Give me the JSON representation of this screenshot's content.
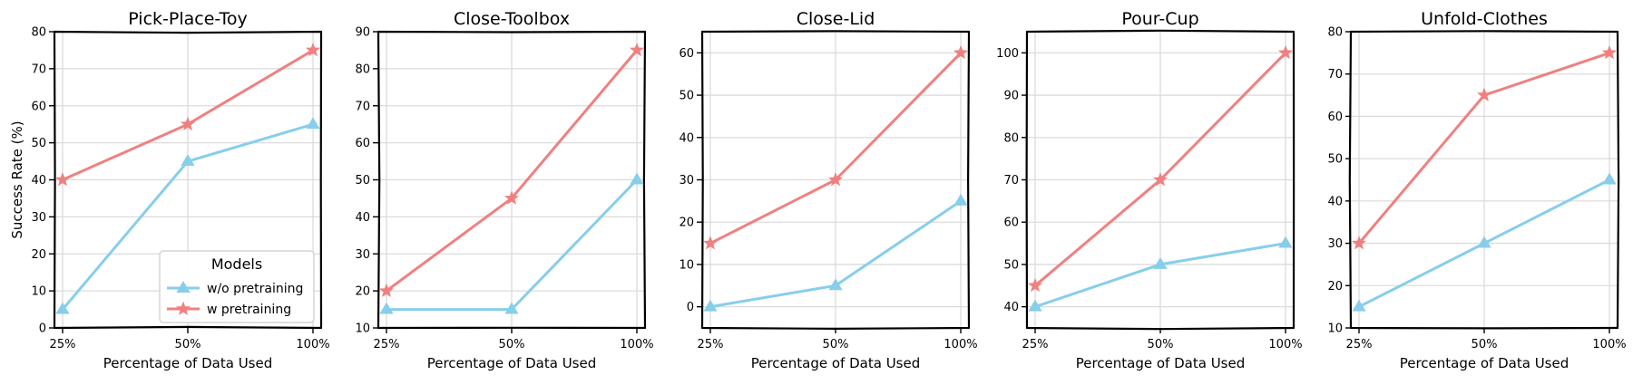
{
  "figure": {
    "ylabel": "Success Rate (%)",
    "xlabel": "Percentage of Data Used",
    "legend": {
      "title": "Models",
      "entries": [
        "w/o pretraining",
        "w pretraining"
      ],
      "placement": "lower-right",
      "panel": 0
    },
    "colors": {
      "w/o pretraining": "#87CEEB",
      "w pretraining": "#F08080"
    },
    "markers": {
      "w/o pretraining": "triangle",
      "w pretraining": "star"
    }
  },
  "chart_data": [
    {
      "type": "line",
      "title": "Pick-Place-Toy",
      "categories": [
        "25%",
        "50%",
        "100%"
      ],
      "ylim": [
        0,
        80
      ],
      "yticks": [
        0,
        10,
        20,
        30,
        40,
        50,
        60,
        70,
        80
      ],
      "grid": true,
      "series": [
        {
          "name": "w/o pretraining",
          "values": [
            5,
            45,
            55
          ]
        },
        {
          "name": "w pretraining",
          "values": [
            40,
            55,
            75
          ]
        }
      ]
    },
    {
      "type": "line",
      "title": "Close-Toolbox",
      "categories": [
        "25%",
        "50%",
        "100%"
      ],
      "ylim": [
        10,
        90
      ],
      "yticks": [
        10,
        20,
        30,
        40,
        50,
        60,
        70,
        80,
        90
      ],
      "grid": true,
      "series": [
        {
          "name": "w/o pretraining",
          "values": [
            15,
            15,
            50
          ]
        },
        {
          "name": "w pretraining",
          "values": [
            20,
            45,
            85
          ]
        }
      ]
    },
    {
      "type": "line",
      "title": "Close-Lid",
      "categories": [
        "25%",
        "50%",
        "100%"
      ],
      "ylim": [
        -5,
        65
      ],
      "yticks": [
        0,
        10,
        20,
        30,
        40,
        50,
        60
      ],
      "grid": true,
      "series": [
        {
          "name": "w/o pretraining",
          "values": [
            0,
            5,
            25
          ]
        },
        {
          "name": "w pretraining",
          "values": [
            15,
            30,
            60
          ]
        }
      ]
    },
    {
      "type": "line",
      "title": "Pour-Cup",
      "categories": [
        "25%",
        "50%",
        "100%"
      ],
      "ylim": [
        35,
        105
      ],
      "yticks": [
        40,
        50,
        60,
        70,
        80,
        90,
        100
      ],
      "grid": true,
      "series": [
        {
          "name": "w/o pretraining",
          "values": [
            40,
            50,
            55
          ]
        },
        {
          "name": "w pretraining",
          "values": [
            45,
            70,
            100
          ]
        }
      ]
    },
    {
      "type": "line",
      "title": "Unfold-Clothes",
      "categories": [
        "25%",
        "50%",
        "100%"
      ],
      "ylim": [
        10,
        80
      ],
      "yticks": [
        10,
        20,
        30,
        40,
        50,
        60,
        70,
        80
      ],
      "grid": true,
      "series": [
        {
          "name": "w/o pretraining",
          "values": [
            15,
            30,
            45
          ]
        },
        {
          "name": "w pretraining",
          "values": [
            30,
            65,
            75
          ]
        }
      ]
    }
  ]
}
